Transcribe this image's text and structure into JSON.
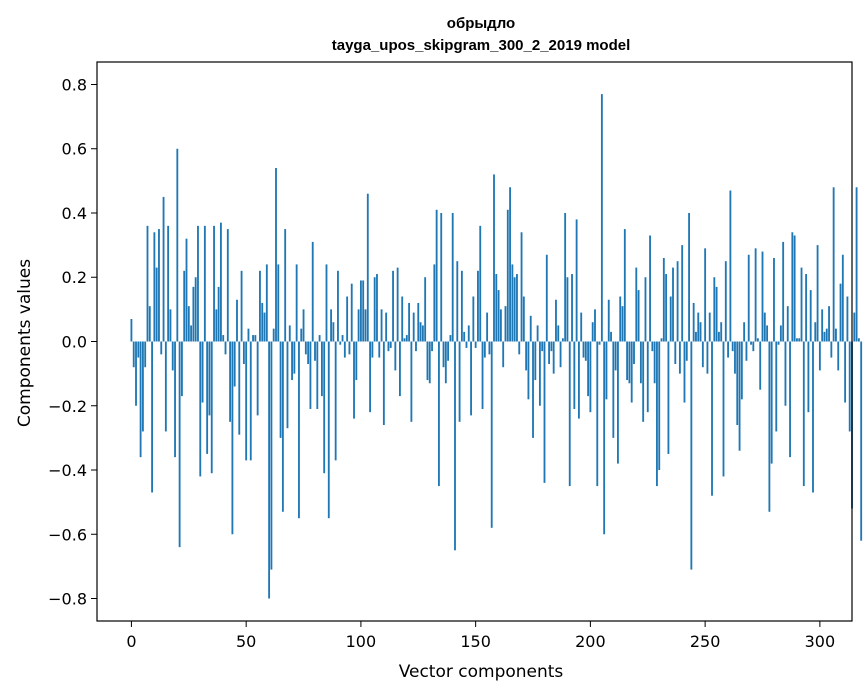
{
  "chart_data": {
    "type": "bar",
    "title": "обрыдло",
    "subtitle": "tayga_upos_skipgram_300_2_2019 model",
    "xlabel": "Vector components",
    "ylabel": "Components values",
    "xlim": [
      -15,
      314
    ],
    "ylim": [
      -0.87,
      0.87
    ],
    "xticks": [
      0,
      50,
      100,
      150,
      200,
      250,
      300
    ],
    "yticks": [
      -0.8,
      -0.6,
      -0.4,
      -0.2,
      0.0,
      0.2,
      0.4,
      0.6,
      0.8
    ],
    "ytick_labels": [
      "−0.8",
      "−0.6",
      "−0.4",
      "−0.2",
      "0.0",
      "0.2",
      "0.4",
      "0.6",
      "0.8"
    ],
    "xtick_labels": [
      "0",
      "50",
      "100",
      "150",
      "200",
      "250",
      "300"
    ],
    "bar_color": "#1f77b4",
    "grid": false,
    "values": [
      0.07,
      -0.08,
      -0.2,
      -0.05,
      -0.36,
      -0.28,
      -0.08,
      0.36,
      0.11,
      -0.47,
      0.34,
      0.23,
      0.35,
      -0.04,
      0.45,
      -0.28,
      0.36,
      0.1,
      -0.09,
      -0.36,
      0.6,
      -0.64,
      -0.17,
      0.22,
      0.32,
      0.11,
      0.05,
      0.17,
      0.2,
      0.36,
      -0.42,
      -0.19,
      0.36,
      -0.35,
      -0.23,
      -0.41,
      0.36,
      0.1,
      0.17,
      0.37,
      0.02,
      -0.04,
      0.35,
      -0.25,
      -0.6,
      -0.14,
      0.13,
      -0.29,
      0.22,
      -0.07,
      -0.37,
      0.04,
      -0.37,
      0.02,
      0.02,
      -0.23,
      0.22,
      0.12,
      0.09,
      0.24,
      -0.8,
      -0.71,
      0.04,
      0.54,
      0.24,
      -0.3,
      -0.53,
      0.35,
      -0.27,
      0.05,
      -0.12,
      -0.1,
      0.24,
      -0.55,
      0.04,
      0.1,
      -0.04,
      -0.07,
      -0.21,
      0.31,
      -0.06,
      -0.21,
      0.02,
      -0.17,
      -0.41,
      0.24,
      -0.55,
      0.1,
      0.06,
      -0.37,
      0.22,
      -0.01,
      0.02,
      -0.05,
      0.14,
      -0.04,
      0.18,
      -0.24,
      -0.12,
      0.1,
      0.19,
      0.19,
      0.1,
      0.46,
      -0.22,
      -0.05,
      0.2,
      0.21,
      -0.05,
      0.1,
      -0.26,
      0.09,
      -0.03,
      -0.02,
      0.22,
      -0.09,
      0.23,
      -0.17,
      0.14,
      0.01,
      0.02,
      0.12,
      -0.25,
      0.09,
      -0.03,
      0.12,
      0.06,
      0.05,
      0.2,
      -0.12,
      -0.13,
      -0.03,
      0.24,
      0.41,
      -0.45,
      0.4,
      -0.08,
      -0.13,
      -0.06,
      0.02,
      0.4,
      -0.65,
      0.25,
      -0.25,
      0.22,
      0.03,
      -0.02,
      0.05,
      -0.23,
      0.14,
      -0.02,
      0.22,
      0.36,
      -0.21,
      -0.05,
      0.09,
      -0.04,
      -0.58,
      0.52,
      0.21,
      0.16,
      0.1,
      -0.08,
      0.11,
      0.41,
      0.48,
      0.24,
      0.2,
      0.21,
      -0.04,
      0.34,
      0.14,
      -0.09,
      -0.18,
      0.08,
      -0.3,
      -0.12,
      0.05,
      -0.2,
      -0.03,
      -0.44,
      0.27,
      -0.07,
      -0.03,
      -0.1,
      0.13,
      0.05,
      -0.08,
      0.01,
      0.4,
      0.2,
      -0.45,
      0.21,
      -0.21,
      0.38,
      -0.24,
      0.09,
      -0.05,
      -0.06,
      -0.17,
      -0.22,
      0.06,
      0.1,
      -0.45,
      -0.01,
      0.77,
      -0.6,
      -0.18,
      0.13,
      0.03,
      -0.3,
      -0.09,
      -0.38,
      0.14,
      0.11,
      0.35,
      -0.12,
      -0.13,
      -0.19,
      -0.07,
      0.23,
      0.16,
      -0.13,
      -0.25,
      0.2,
      -0.22,
      0.33,
      -0.03,
      -0.13,
      -0.45,
      -0.4,
      0.01,
      0.26,
      0.21,
      -0.35,
      0.14,
      0.23,
      -0.07,
      0.25,
      -0.1,
      0.3,
      -0.19,
      -0.06,
      0.4,
      -0.71,
      0.12,
      0.03,
      0.09,
      0.06,
      -0.08,
      0.29,
      -0.1,
      0.09,
      -0.48,
      0.2,
      0.17,
      0.03,
      0.06,
      -0.42,
      0.25,
      -0.05,
      0.47,
      -0.03,
      -0.1,
      -0.26,
      -0.34,
      -0.18,
      0.06,
      -0.06,
      0.27,
      -0.01,
      -0.03,
      0.29,
      0.01,
      -0.15,
      0.28,
      0.09,
      0.05,
      -0.53,
      -0.38,
      0.26,
      -0.28,
      -0.01,
      0.05,
      0.31,
      -0.2,
      0.11,
      -0.36,
      0.34,
      0.33,
      0.01,
      0.01,
      0.23,
      -0.45,
      0.21,
      -0.22,
      0.16,
      -0.47,
      0.06,
      0.3,
      -0.09,
      0.1,
      0.03,
      0.04,
      0.11,
      -0.05,
      0.48,
      0.04,
      -0.09,
      0.18,
      0.27,
      -0.19,
      0.14,
      -0.28,
      -0.52,
      0.09,
      0.48,
      0.01,
      -0.62
    ]
  }
}
